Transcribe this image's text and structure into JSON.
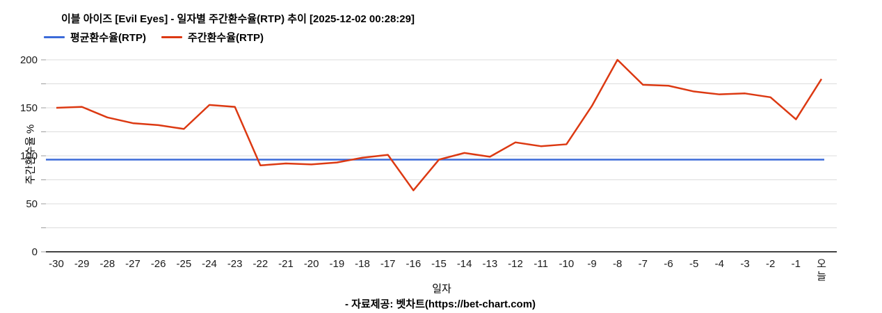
{
  "header": {
    "title": "이블 아이즈 [Evil Eyes] - 일자별 주간환수율(RTP) 추이 [2025-12-02 00:28:29]"
  },
  "legend": [
    {
      "label": "평균환수율(RTP)",
      "color": "#3c6bd9"
    },
    {
      "label": "주간환수율(RTP)",
      "color": "#dc3912"
    }
  ],
  "chart_data": {
    "type": "line",
    "title": "이블 아이즈 [Evil Eyes] - 일자별 주간환수율(RTP) 추이 [2025-12-02 00:28:29]",
    "xlabel": "일자",
    "ylabel": "주간환수율 %",
    "ylim": [
      0,
      200
    ],
    "y_ticks": [
      0,
      50,
      100,
      150,
      200
    ],
    "y_minor_step": 25,
    "grid": true,
    "legend_position": "top",
    "categories": [
      "-30",
      "-29",
      "-28",
      "-27",
      "-26",
      "-25",
      "-24",
      "-23",
      "-22",
      "-21",
      "-20",
      "-19",
      "-18",
      "-17",
      "-16",
      "-15",
      "-14",
      "-13",
      "-12",
      "-11",
      "-10",
      "-9",
      "-8",
      "-7",
      "-6",
      "-5",
      "-4",
      "-3",
      "-2",
      "-1",
      "오늘"
    ],
    "series": [
      {
        "name": "평균환수율(RTP)",
        "color": "#3c6bd9",
        "constant_value": 96
      },
      {
        "name": "주간환수율(RTP)",
        "color": "#dc3912",
        "values": [
          150,
          151,
          140,
          134,
          132,
          128,
          153,
          151,
          90,
          92,
          91,
          93,
          98,
          101,
          64,
          96,
          103,
          99,
          114,
          110,
          112,
          152,
          200,
          174,
          173,
          167,
          164,
          165,
          161,
          138,
          180
        ]
      }
    ]
  },
  "footer": {
    "source": "- 자료제공: 벳차트(https://bet-chart.com)"
  }
}
